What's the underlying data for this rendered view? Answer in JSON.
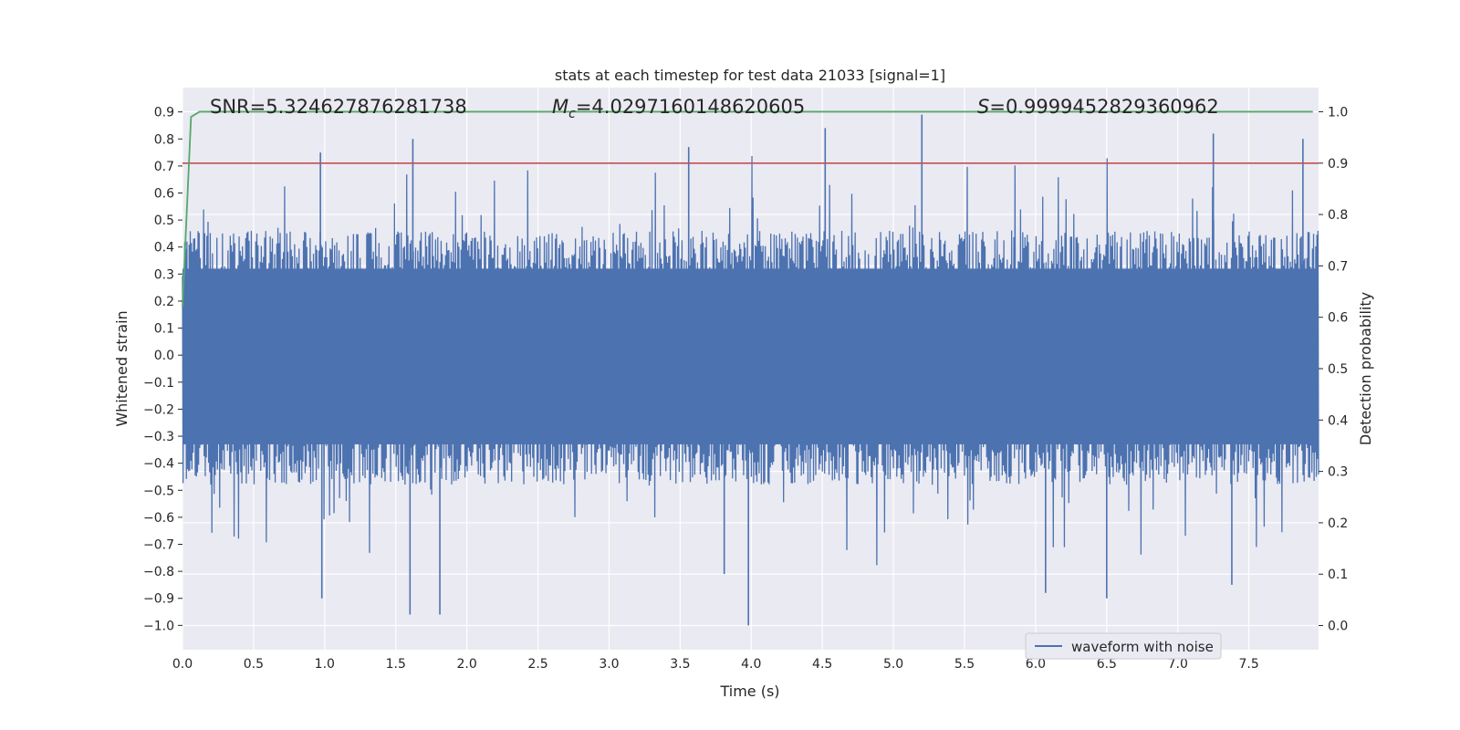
{
  "chart_data": {
    "type": "line",
    "title": "stats at each timestep for test data 21033 [signal=1]",
    "xlabel": "Time (s)",
    "ylabel": "Whitened strain",
    "y2label": "Detection probability",
    "xlim": [
      0.0,
      7.99
    ],
    "ylim": [
      -1.09,
      0.99
    ],
    "y2lim": [
      -0.047,
      1.047
    ],
    "xticks": [
      0.0,
      0.5,
      1.0,
      1.5,
      2.0,
      2.5,
      3.0,
      3.5,
      4.0,
      4.5,
      5.0,
      5.5,
      6.0,
      6.5,
      7.0,
      7.5
    ],
    "xtick_labels": [
      "0.0",
      "0.5",
      "1.0",
      "1.5",
      "2.0",
      "2.5",
      "3.0",
      "3.5",
      "4.0",
      "4.5",
      "5.0",
      "5.5",
      "6.0",
      "6.5",
      "7.0",
      "7.5"
    ],
    "yticks": [
      0.9,
      0.8,
      0.7,
      0.6,
      0.5,
      0.4,
      0.3,
      0.2,
      0.1,
      0.0,
      -0.1,
      -0.2,
      -0.3,
      -0.4,
      -0.5,
      -0.6,
      -0.7,
      -0.8,
      -0.9,
      -1.0
    ],
    "ytick_labels": [
      "0.9",
      "0.8",
      "0.7",
      "0.6",
      "0.5",
      "0.4",
      "0.3",
      "0.2",
      "0.1",
      "0.0",
      "−0.1",
      "−0.2",
      "−0.3",
      "−0.4",
      "−0.5",
      "−0.6",
      "−0.7",
      "−0.8",
      "−0.9",
      "−1.0"
    ],
    "y2ticks": [
      1.0,
      0.9,
      0.8,
      0.7,
      0.6,
      0.5,
      0.4,
      0.3,
      0.2,
      0.1,
      0.0
    ],
    "y2tick_labels": [
      "1.0",
      "0.9",
      "0.8",
      "0.7",
      "0.6",
      "0.5",
      "0.4",
      "0.3",
      "0.2",
      "0.1",
      "0.0"
    ],
    "annotations": {
      "snr": "SNR=5.324627876281738",
      "mc_symbol": "M",
      "mc_sub": "c",
      "mc_value": "=4.0297160148620605",
      "s_symbol": "S",
      "s_value": "=0.9999452829360962"
    },
    "legend": {
      "label": "waveform with noise",
      "placement": "lower-right"
    },
    "threshold": {
      "axis": "y2",
      "value": 0.9,
      "color": "#c44e52"
    },
    "series": [
      {
        "name": "waveform with noise",
        "axis": "y",
        "color": "#4c72b0",
        "description": "dense noisy whitened strain sampled over 0-8 s",
        "sample_count": 2048,
        "typical_range": [
          -0.45,
          0.42
        ],
        "peaks": [
          {
            "x": 0.97,
            "y": 0.75
          },
          {
            "x": 1.62,
            "y": 0.8
          },
          {
            "x": 3.56,
            "y": 0.77
          },
          {
            "x": 4.52,
            "y": 0.84
          },
          {
            "x": 5.2,
            "y": 0.89
          },
          {
            "x": 7.25,
            "y": 0.82
          },
          {
            "x": 7.88,
            "y": 0.8
          }
        ],
        "troughs": [
          {
            "x": 0.98,
            "y": -0.9
          },
          {
            "x": 1.6,
            "y": -0.96
          },
          {
            "x": 1.81,
            "y": -0.96
          },
          {
            "x": 3.81,
            "y": -0.81
          },
          {
            "x": 3.98,
            "y": -1.0
          },
          {
            "x": 6.07,
            "y": -0.88
          },
          {
            "x": 6.5,
            "y": -0.9
          },
          {
            "x": 7.38,
            "y": -0.85
          }
        ]
      },
      {
        "name": "detection probability",
        "axis": "y2",
        "color": "#55a868",
        "x": [
          0.0,
          0.06,
          0.12,
          0.2,
          1.0,
          2.0,
          3.0,
          4.0,
          5.0,
          6.0,
          7.0,
          7.95
        ],
        "values": [
          0.62,
          0.99,
          1.0,
          1.0,
          1.0,
          1.0,
          1.0,
          1.0,
          1.0,
          1.0,
          1.0,
          1.0
        ]
      }
    ]
  },
  "colors": {
    "plot_background": "#eaeaf2",
    "grid": "#ffffff",
    "legend_background": "#eaeaf2"
  }
}
